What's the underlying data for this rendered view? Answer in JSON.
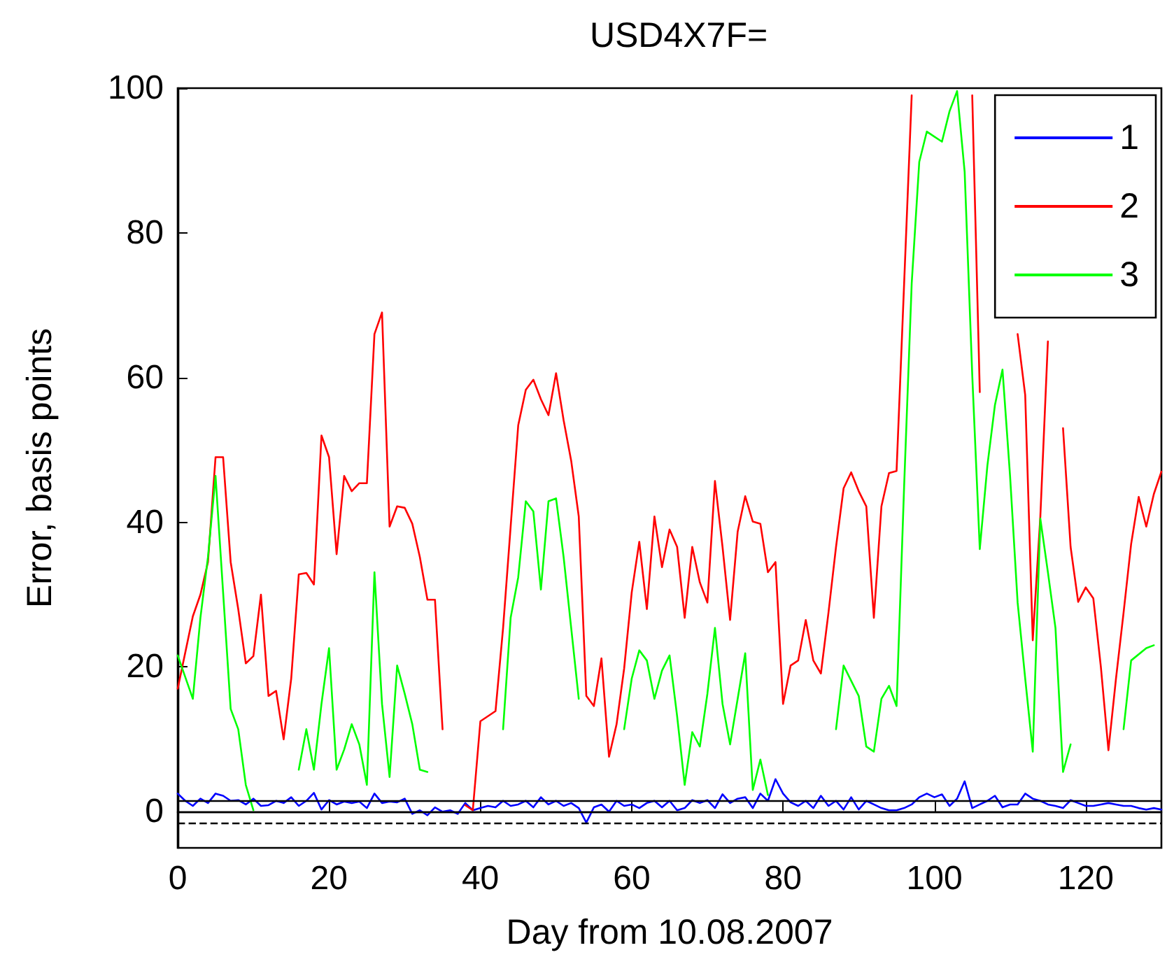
{
  "chart_data": {
    "type": "line",
    "title": "USD4X7F=",
    "xlabel": "Day from 10.08.2007",
    "ylabel": "Error, basis points",
    "xlim": [
      0,
      130
    ],
    "xticks": [
      0,
      20,
      40,
      60,
      80,
      100,
      120
    ],
    "ylim": [
      -5,
      100
    ],
    "yticks": [
      0,
      20,
      40,
      60,
      80,
      100
    ],
    "grid": false,
    "legend": "top right",
    "marker": "none",
    "line_style": "solid",
    "ref_lines": [
      {
        "axis": "y",
        "value": 1.5,
        "color": "#000000",
        "line_style": "solid"
      },
      {
        "axis": "y",
        "value": 0,
        "color": "#000000",
        "line_style": "solid"
      },
      {
        "axis": "y",
        "value": -1.5,
        "color": "#000000",
        "line_style": "dashed"
      }
    ],
    "series": [
      {
        "name": "1",
        "color": "#0000ff",
        "x": [
          0,
          1,
          2,
          3,
          4,
          5,
          6,
          7,
          8,
          9,
          10,
          11,
          12,
          13,
          14,
          15,
          16,
          17,
          18,
          19,
          20,
          21,
          22,
          23,
          24,
          25,
          26,
          27,
          28,
          29,
          30,
          31,
          32,
          33,
          34,
          35,
          36,
          37,
          38,
          39,
          40,
          41,
          42,
          43,
          44,
          45,
          46,
          47,
          48,
          49,
          50,
          51,
          52,
          53,
          54,
          55,
          56,
          57,
          58,
          59,
          60,
          61,
          62,
          63,
          64,
          65,
          66,
          67,
          68,
          69,
          70,
          71,
          72,
          73,
          74,
          75,
          76,
          77,
          78,
          79,
          80,
          81,
          82,
          83,
          84,
          85,
          86,
          87,
          88,
          89,
          90,
          91,
          92,
          93,
          94,
          95,
          96,
          97,
          98,
          99,
          100,
          101,
          102,
          103,
          104,
          105,
          106,
          107,
          108,
          109,
          110,
          111,
          112,
          113,
          114,
          115,
          116,
          117,
          118,
          119,
          120,
          121,
          122,
          123,
          124,
          125,
          126,
          127,
          128,
          129,
          130
        ],
        "values": [
          2.5,
          1.5,
          0.8,
          1.8,
          1.2,
          2.5,
          2.2,
          1.5,
          1.6,
          1,
          1.8,
          0.8,
          0.9,
          1.5,
          1.2,
          2,
          0.8,
          1.5,
          2.6,
          0.3,
          1.6,
          1,
          1.4,
          1.2,
          1.4,
          0.5,
          2.5,
          1.2,
          1.4,
          1.3,
          1.8,
          -0.3,
          0.2,
          -0.5,
          0.6,
          0,
          0.2,
          -0.3,
          1.2,
          0.2,
          0.5,
          0.8,
          0.6,
          1.5,
          0.8,
          1,
          1.5,
          0.6,
          2,
          1,
          1.5,
          0.8,
          1.2,
          0.5,
          -1.5,
          0.6,
          1,
          0,
          1.5,
          0.8,
          1,
          0.5,
          1.2,
          1.5,
          0.6,
          1.5,
          0.2,
          0.5,
          1.6,
          1.2,
          1.6,
          0.5,
          2.4,
          1.2,
          1.8,
          2,
          0.5,
          2.5,
          1.5,
          4.5,
          2.5,
          1.3,
          0.8,
          1.5,
          0.5,
          2.2,
          0.8,
          1.5,
          0.3,
          2,
          0.3,
          1.5,
          1,
          0.5,
          0.2,
          0.2,
          0.5,
          1,
          2,
          2.5,
          2,
          2.4,
          0.8,
          1.8,
          4.2,
          0.5,
          1,
          1.5,
          2.2,
          0.6,
          1,
          1,
          2.5,
          1.8,
          1.5,
          1,
          0.8,
          0.5,
          1.6,
          1.2,
          0.8,
          0.8,
          1,
          1.2,
          1,
          0.8,
          0.8,
          0.5,
          0.3,
          0.5,
          0.3
        ]
      },
      {
        "name": "2",
        "color": "#ff0000",
        "x": [
          0,
          2,
          3,
          4,
          5,
          6,
          7,
          8,
          9,
          10,
          11,
          12,
          13,
          14,
          15,
          16,
          17,
          18,
          19,
          20,
          21,
          22,
          23,
          24,
          25,
          26,
          27,
          28,
          29,
          30,
          31,
          32,
          33,
          34,
          35,
          36,
          37,
          38,
          39,
          40,
          41,
          42,
          43,
          44,
          45,
          46,
          47,
          48,
          49,
          50,
          51,
          52,
          53,
          54,
          55,
          56,
          57,
          58,
          59,
          60,
          61,
          62,
          63,
          64,
          65,
          66,
          67,
          68,
          69,
          70,
          71,
          72,
          73,
          74,
          75,
          76,
          77,
          78,
          79,
          80,
          81,
          82,
          83,
          84,
          85,
          86,
          87,
          88,
          89,
          90,
          91,
          92,
          93,
          94,
          95,
          96,
          97,
          98,
          99,
          100,
          101,
          102,
          103,
          104,
          105,
          106,
          107,
          108,
          109,
          110,
          111,
          112,
          113,
          114,
          115,
          116,
          117,
          118,
          119,
          120,
          121,
          122,
          123,
          124,
          125,
          126,
          127,
          128,
          129,
          130
        ],
        "values": [
          17,
          27,
          30,
          34.5,
          49,
          49,
          34.5,
          28,
          20.5,
          21.5,
          30,
          16,
          16.7,
          10,
          18.4,
          32.8,
          33,
          31.4,
          52,
          49,
          35.6,
          46.4,
          44.3,
          45.4,
          45.4,
          66,
          69,
          39.4,
          42.2,
          42,
          39.8,
          35.2,
          29.3,
          29.3,
          11.4,
          null,
          null,
          0.9,
          0.2,
          12.5,
          13.2,
          13.9,
          25.4,
          39.4,
          53.4,
          58.3,
          59.7,
          57,
          54.8,
          60.6,
          54.1,
          48.5,
          40.8,
          16,
          14.6,
          21.2,
          7.6,
          12.1,
          19.8,
          30.3,
          37.3,
          28,
          40.8,
          33.8,
          39,
          36.6,
          26.8,
          36.6,
          31.7,
          28.9,
          45.7,
          36.6,
          26.5,
          38.7,
          43.6,
          40.1,
          39.8,
          33.1,
          34.5,
          14.9,
          20.2,
          20.9,
          26.5,
          20.9,
          19.1,
          27.5,
          36.6,
          44.7,
          46.9,
          44.3,
          42.2,
          26.8,
          42.2,
          46.8,
          47.1,
          73,
          99,
          null,
          null,
          null,
          null,
          null,
          null,
          null,
          99,
          58,
          null,
          null,
          null,
          null,
          66,
          57.6,
          23.7,
          40.8,
          65,
          null,
          53,
          36.6,
          29,
          31,
          29.5,
          20,
          8.5,
          18.4,
          27.5,
          37,
          43.5,
          39.4,
          43.9,
          47
        ]
      },
      {
        "name": "3",
        "color": "#00ff00",
        "x": [
          0,
          2,
          3,
          4,
          5,
          6,
          7,
          8,
          9,
          10,
          11,
          16,
          17,
          18,
          19,
          20,
          21,
          22,
          23,
          24,
          25,
          26,
          27,
          28,
          29,
          30,
          31,
          32,
          33,
          34,
          42,
          43,
          44,
          45,
          46,
          47,
          48,
          49,
          50,
          51,
          52,
          53,
          54,
          56,
          57,
          59,
          60,
          61,
          62,
          63,
          64,
          65,
          66,
          67,
          68,
          69,
          70,
          71,
          72,
          73,
          74,
          75,
          76,
          77,
          78,
          79,
          87,
          88,
          89,
          90,
          91,
          92,
          93,
          94,
          95,
          96,
          97,
          98,
          99,
          100,
          101,
          102,
          103,
          104,
          105,
          106,
          107,
          108,
          109,
          110,
          111,
          112,
          113,
          114,
          115,
          116,
          117,
          118,
          119,
          125,
          126,
          128,
          129
        ],
        "values": [
          21.6,
          15.6,
          26.8,
          35.2,
          46.4,
          30.3,
          14.2,
          11.4,
          3.7,
          0.2,
          null,
          5.8,
          11.4,
          5.8,
          14.9,
          22.6,
          5.8,
          8.6,
          12.1,
          9.3,
          3.7,
          33.1,
          14.9,
          4.8,
          20.2,
          16.3,
          12.1,
          5.8,
          5.5,
          null,
          null,
          11.4,
          26.8,
          32.4,
          42.9,
          41.5,
          30.7,
          42.9,
          43.3,
          35.2,
          25.4,
          15.6,
          null,
          null,
          null,
          11.4,
          18.4,
          22.3,
          20.9,
          15.6,
          19.5,
          21.6,
          13.2,
          3.7,
          11,
          9,
          16.3,
          25.4,
          14.9,
          9.3,
          15.6,
          21.9,
          3,
          7.2,
          2.3,
          null,
          11.4,
          20.2,
          18.1,
          16,
          9,
          8.3,
          15.6,
          17.4,
          14.6,
          45,
          73,
          89.8,
          94,
          93.3,
          92.6,
          96.8,
          99.6,
          88.4,
          60.4,
          36.3,
          47.8,
          56.2,
          61.1,
          46.4,
          28.9,
          18.4,
          8.3,
          40.5,
          33.1,
          25.4,
          5.5,
          9.3,
          null,
          11.4,
          20.9,
          22.6,
          23
        ]
      }
    ]
  }
}
